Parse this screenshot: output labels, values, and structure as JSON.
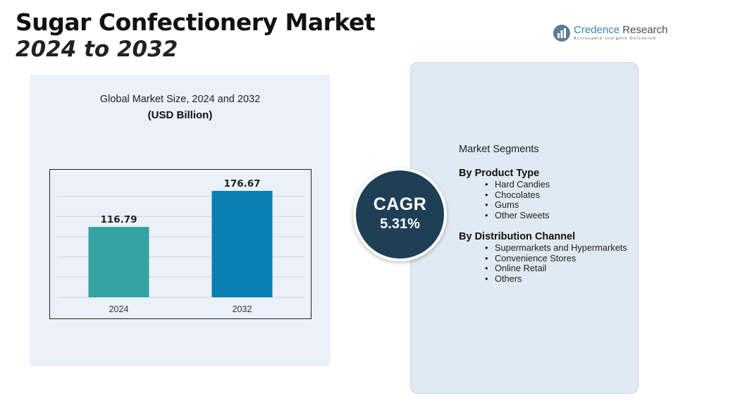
{
  "header": {
    "title": "Sugar Confectionery Market",
    "subtitle": "2024 to 2032"
  },
  "logo": {
    "name_part1": "Credence",
    "name_part2": "Research",
    "tagline": "Actionable Insights Delivered",
    "icon": "bar-chart-logo-icon"
  },
  "chart": {
    "title": "Global Market Size, 2024 and 2032",
    "unit": "(USD Billion)"
  },
  "chart_data": {
    "type": "bar",
    "categories": [
      "2024",
      "2032"
    ],
    "values": [
      116.79,
      176.67
    ],
    "value_labels": [
      "116.79",
      "176.67"
    ],
    "colors": [
      "#33a3a3",
      "#0a7fb3"
    ],
    "ylim": [
      0,
      200
    ],
    "grid": true,
    "title": "Global Market Size, 2024 and 2032",
    "xlabel": "",
    "ylabel": "(USD Billion)"
  },
  "cagr": {
    "label": "CAGR",
    "value": "5.31%"
  },
  "segments": {
    "heading": "Market Segments",
    "product_type": {
      "title": "By Product Type",
      "items": [
        "Hard Candies",
        "Chocolates",
        "Gums",
        "Other Sweets"
      ]
    },
    "distribution": {
      "title": "By Distribution Channel",
      "items": [
        "Supermarkets and Hypermarkets",
        "Convenience Stores",
        "Online Retail",
        "Others"
      ]
    }
  },
  "colors": {
    "panel_bg": "#eaf1f8",
    "segment_bg": "#dfeaf3",
    "cagr_circle": "#1e3f55",
    "logo_blue": "#3a7fb8"
  }
}
